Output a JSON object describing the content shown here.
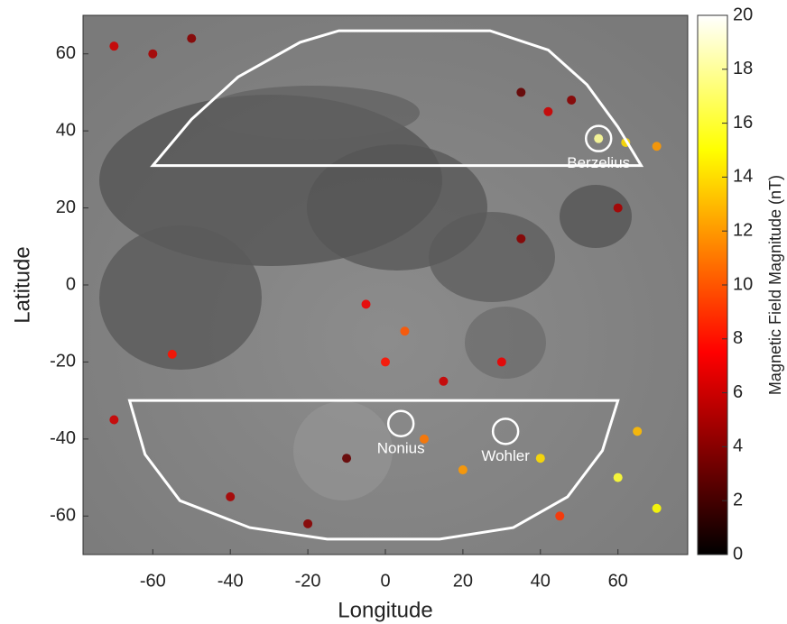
{
  "chart_data": {
    "type": "map",
    "xlabel": "Longitude",
    "ylabel": "Latitude",
    "xlim": [
      -78,
      78
    ],
    "ylim": [
      -70,
      70
    ],
    "xticks": [
      -60,
      -40,
      -20,
      0,
      20,
      40,
      60
    ],
    "yticks": [
      -60,
      -40,
      -20,
      0,
      20,
      40,
      60
    ],
    "colorbar": {
      "label": "Magnetic Field Magnitude (nT)",
      "lim": [
        0,
        20
      ],
      "ticks": [
        0,
        2,
        4,
        6,
        8,
        10,
        12,
        14,
        16,
        18,
        20
      ],
      "colormap": "hot"
    },
    "regions": [
      {
        "points": [
          [
            -60,
            31
          ],
          [
            -50,
            43
          ],
          [
            -38,
            54
          ],
          [
            -22,
            63
          ],
          [
            -12,
            66
          ],
          [
            27,
            66
          ],
          [
            42,
            61
          ],
          [
            52,
            52
          ],
          [
            60,
            41
          ],
          [
            66,
            31
          ]
        ]
      },
      {
        "points": [
          [
            -66,
            -30
          ],
          [
            60,
            -30
          ],
          [
            56,
            -43
          ],
          [
            47,
            -55
          ],
          [
            33,
            -63
          ],
          [
            14,
            -66
          ],
          [
            -15,
            -66
          ],
          [
            -35,
            -63
          ],
          [
            -53,
            -56
          ],
          [
            -62,
            -44
          ]
        ]
      }
    ],
    "craters": [
      {
        "name": "Berzelius",
        "lon": 55,
        "lat": 38
      },
      {
        "name": "Nonius",
        "lon": 4,
        "lat": -36
      },
      {
        "name": "Wohler",
        "lon": 31,
        "lat": -38
      }
    ],
    "anomalies": {
      "x": [
        55,
        62,
        70,
        -70,
        -60,
        -50,
        35,
        48,
        42,
        -5,
        5,
        0,
        15,
        30,
        -55,
        -70,
        -40,
        -20,
        20,
        40,
        60,
        70,
        45,
        65,
        10,
        -10,
        60,
        35
      ],
      "y": [
        38,
        37,
        36,
        62,
        60,
        64,
        50,
        48,
        45,
        -5,
        -12,
        -20,
        -25,
        -20,
        -18,
        -35,
        -55,
        -62,
        -48,
        -45,
        -50,
        -58,
        -60,
        -38,
        -40,
        -45,
        20,
        12
      ],
      "values": [
        18,
        14,
        12,
        6,
        5,
        4,
        3,
        4,
        6,
        7,
        10,
        8,
        6,
        7,
        8,
        6,
        5,
        4,
        12,
        14,
        16,
        15,
        9,
        13,
        11,
        3,
        5,
        4
      ]
    }
  }
}
